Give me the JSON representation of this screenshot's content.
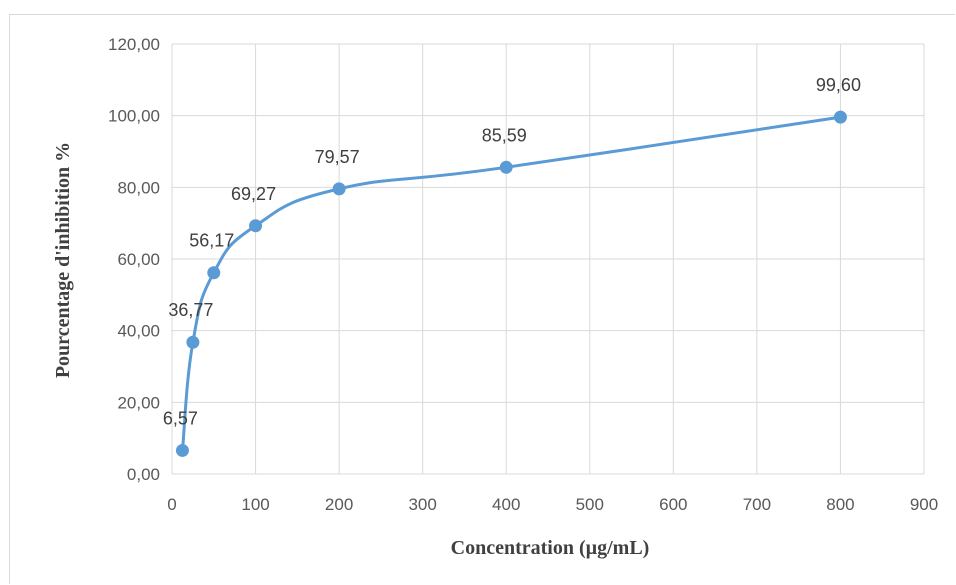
{
  "chart_data": {
    "type": "scatter",
    "smooth": true,
    "xlabel": "Concentration (µg/mL)",
    "ylabel": "Pourcentage d'inhibition  %",
    "xlim": [
      0,
      900
    ],
    "ylim": [
      0,
      120
    ],
    "x_ticks": [
      "0",
      "100",
      "200",
      "300",
      "400",
      "500",
      "600",
      "700",
      "800",
      "900"
    ],
    "y_ticks": [
      "0,00",
      "20,00",
      "40,00",
      "60,00",
      "80,00",
      "100,00",
      "120,00"
    ],
    "grid": true,
    "legend": "none",
    "series": [
      {
        "x": [
          12.5,
          25,
          50,
          100,
          200,
          400,
          800
        ],
        "values": [
          6.57,
          36.77,
          56.17,
          69.27,
          79.57,
          85.59,
          99.6
        ],
        "data_labels": [
          "6,57",
          "36,77",
          "56,17",
          "69,27",
          "79,57",
          "85,59",
          "99,60"
        ],
        "color": "#5b9bd5"
      }
    ]
  }
}
